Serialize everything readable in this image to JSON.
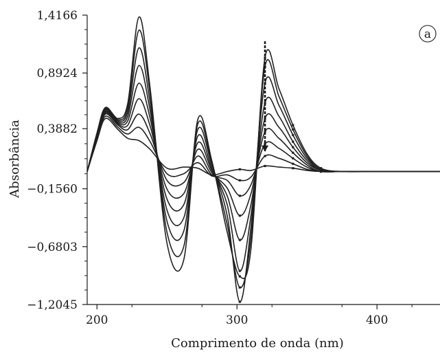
{
  "chart_data": {
    "type": "line",
    "title": "",
    "xlabel": "Comprimento de onda (nm)",
    "ylabel": "Absorbância",
    "panel_label": "a",
    "xlim": [
      193,
      445
    ],
    "ylim": [
      -1.2045,
      1.4166
    ],
    "x_ticks": [
      200,
      300,
      400
    ],
    "x_tick_labels": [
      "200",
      "300",
      "400"
    ],
    "y_ticks": [
      1.4166,
      0.8924,
      0.3882,
      -0.156,
      -0.6803,
      -1.2045
    ],
    "y_tick_labels": [
      "1,4166",
      "0,8924",
      "0,3882",
      "−0,1560",
      "−0,6803",
      "−1,2045"
    ],
    "grid": false,
    "legend": "none",
    "line_color": "#202020",
    "series": [
      {
        "x": [
          193,
          200,
          206,
          215,
          222,
          230,
          238,
          250,
          262,
          272,
          282,
          293,
          302,
          310,
          320,
          330,
          340,
          350,
          360,
          375,
          400,
          445
        ],
        "y": [
          0.0,
          0.35,
          0.58,
          0.48,
          0.62,
          1.4,
          0.75,
          -0.65,
          -0.8,
          0.47,
          0.1,
          -0.55,
          -0.95,
          -0.7,
          1.03,
          0.75,
          0.42,
          0.16,
          0.03,
          0.0,
          0.0,
          0.0
        ]
      },
      {
        "x": [
          193,
          200,
          206,
          215,
          222,
          230,
          238,
          250,
          262,
          272,
          282,
          293,
          302,
          310,
          320,
          330,
          340,
          350,
          360,
          375,
          400,
          445
        ],
        "y": [
          0.0,
          0.34,
          0.57,
          0.47,
          0.58,
          1.28,
          0.7,
          -0.55,
          -0.68,
          0.43,
          0.08,
          -0.48,
          -1.05,
          -0.6,
          0.95,
          0.68,
          0.38,
          0.14,
          0.02,
          0.0,
          0.0,
          0.0
        ]
      },
      {
        "x": [
          193,
          200,
          206,
          215,
          222,
          230,
          238,
          250,
          262,
          272,
          282,
          293,
          302,
          310,
          320,
          330,
          340,
          350,
          360,
          375,
          400,
          445
        ],
        "y": [
          0.0,
          0.33,
          0.56,
          0.46,
          0.54,
          1.12,
          0.62,
          -0.45,
          -0.54,
          0.38,
          0.06,
          -0.4,
          -1.18,
          -0.5,
          0.8,
          0.6,
          0.33,
          0.12,
          0.02,
          0.0,
          0.0,
          0.0
        ]
      },
      {
        "x": [
          193,
          200,
          206,
          215,
          222,
          230,
          238,
          250,
          262,
          272,
          282,
          293,
          302,
          310,
          320,
          330,
          340,
          350,
          360,
          375,
          400,
          445
        ],
        "y": [
          0.0,
          0.32,
          0.55,
          0.45,
          0.5,
          0.96,
          0.55,
          -0.35,
          -0.42,
          0.32,
          0.03,
          -0.3,
          -0.9,
          -0.4,
          0.62,
          0.5,
          0.27,
          0.1,
          0.01,
          0.0,
          0.0,
          0.0
        ]
      },
      {
        "x": [
          193,
          200,
          206,
          215,
          222,
          230,
          238,
          250,
          262,
          272,
          282,
          293,
          302,
          310,
          320,
          330,
          340,
          350,
          360,
          375,
          400,
          445
        ],
        "y": [
          0.0,
          0.31,
          0.54,
          0.44,
          0.46,
          0.8,
          0.48,
          -0.25,
          -0.3,
          0.26,
          0.01,
          -0.22,
          -0.62,
          -0.3,
          0.48,
          0.4,
          0.22,
          0.08,
          0.01,
          0.0,
          0.0,
          0.0
        ]
      },
      {
        "x": [
          193,
          200,
          206,
          215,
          222,
          230,
          238,
          250,
          262,
          272,
          282,
          293,
          302,
          310,
          320,
          330,
          340,
          350,
          360,
          375,
          400,
          445
        ],
        "y": [
          0.0,
          0.3,
          0.53,
          0.43,
          0.42,
          0.66,
          0.41,
          -0.16,
          -0.2,
          0.2,
          -0.01,
          -0.15,
          -0.4,
          -0.2,
          0.36,
          0.3,
          0.17,
          0.06,
          0.0,
          0.0,
          0.0,
          0.0
        ]
      },
      {
        "x": [
          193,
          200,
          206,
          215,
          222,
          230,
          238,
          250,
          262,
          272,
          282,
          293,
          302,
          310,
          320,
          330,
          340,
          350,
          360,
          375,
          400,
          445
        ],
        "y": [
          0.0,
          0.3,
          0.52,
          0.42,
          0.38,
          0.52,
          0.34,
          -0.08,
          -0.1,
          0.14,
          -0.03,
          -0.08,
          -0.22,
          -0.12,
          0.25,
          0.21,
          0.12,
          0.04,
          0.0,
          0.0,
          0.0,
          0.0
        ]
      },
      {
        "x": [
          193,
          200,
          206,
          215,
          222,
          230,
          238,
          250,
          262,
          272,
          282,
          293,
          302,
          310,
          320,
          330,
          340,
          350,
          360,
          375,
          400,
          445
        ],
        "y": [
          0.0,
          0.29,
          0.5,
          0.4,
          0.34,
          0.4,
          0.27,
          -0.02,
          -0.02,
          0.08,
          -0.04,
          -0.03,
          -0.08,
          -0.05,
          0.14,
          0.12,
          0.07,
          0.02,
          0.0,
          0.0,
          0.0,
          0.0
        ]
      },
      {
        "x": [
          193,
          200,
          206,
          215,
          222,
          230,
          238,
          250,
          262,
          272,
          282,
          293,
          302,
          310,
          320,
          330,
          340,
          350,
          360,
          375,
          400,
          445
        ],
        "y": [
          0.0,
          0.28,
          0.48,
          0.38,
          0.3,
          0.28,
          0.2,
          0.03,
          0.04,
          0.03,
          -0.03,
          0.0,
          0.02,
          0.01,
          0.05,
          0.04,
          0.03,
          0.01,
          0.0,
          0.0,
          0.0,
          0.0
        ]
      }
    ],
    "annotations": [
      {
        "type": "arrow",
        "x": 320,
        "y_from": 1.18,
        "y_to": 0.18,
        "direction": "down"
      }
    ]
  }
}
